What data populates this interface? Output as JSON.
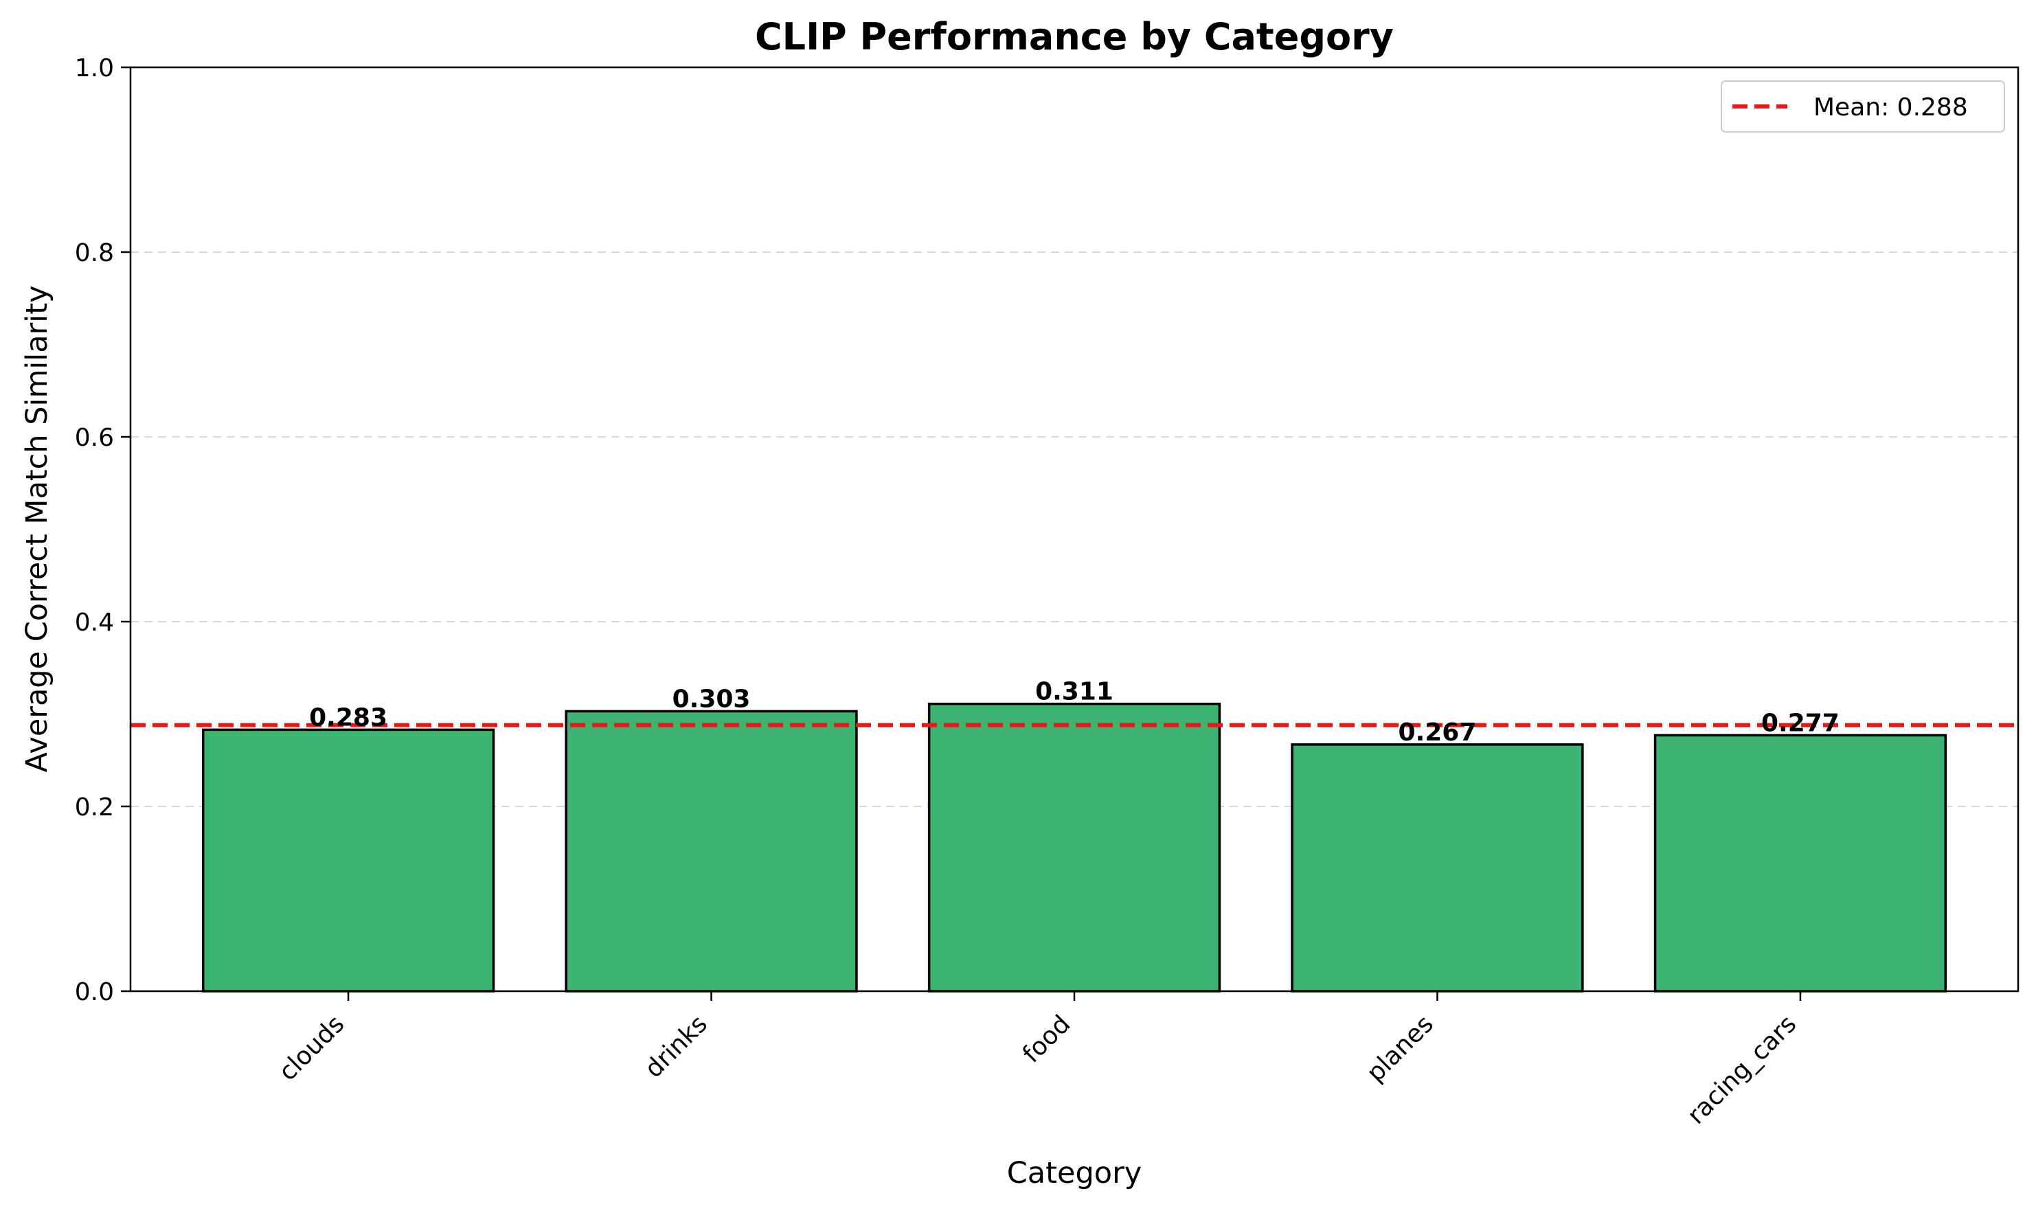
{
  "chart_data": {
    "type": "bar",
    "title": "CLIP Performance by Category",
    "xlabel": "Category",
    "ylabel": "Average Correct Match Similarity",
    "categories": [
      "clouds",
      "drinks",
      "food",
      "planes",
      "racing_cars"
    ],
    "values": [
      0.283,
      0.303,
      0.311,
      0.267,
      0.277
    ],
    "value_labels": [
      "0.283",
      "0.303",
      "0.311",
      "0.267",
      "0.277"
    ],
    "ylim": [
      0,
      1.0
    ],
    "yticks": [
      0.0,
      0.2,
      0.4,
      0.6,
      0.8,
      1.0
    ],
    "ytick_labels": [
      "0.0",
      "0.2",
      "0.4",
      "0.6",
      "0.8",
      "1.0"
    ],
    "mean": 0.288,
    "mean_label": "Mean: 0.288",
    "grid": "y-dashed",
    "legend_position": "top-right",
    "colors": {
      "bar_fill": "#3cb371",
      "bar_edge": "#000000",
      "mean_line": "#e31a1c",
      "grid": "#d9d9d9"
    }
  }
}
